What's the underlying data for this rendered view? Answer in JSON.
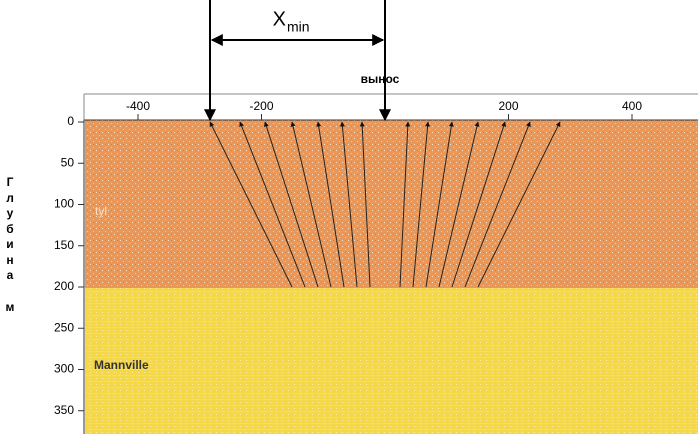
{
  "header": {
    "offset_symbol": "X",
    "offset_subscript": "min",
    "offset_label": "вынос"
  },
  "axes": {
    "x": {
      "ticks": [
        -400,
        -200,
        200,
        400
      ]
    },
    "y": {
      "ticks": [
        0,
        50,
        100,
        150,
        200,
        250,
        300,
        350
      ],
      "label": "Глубина",
      "unit": "м"
    }
  },
  "layers": [
    {
      "label": "tyl"
    },
    {
      "label": "Mannville"
    }
  ]
}
